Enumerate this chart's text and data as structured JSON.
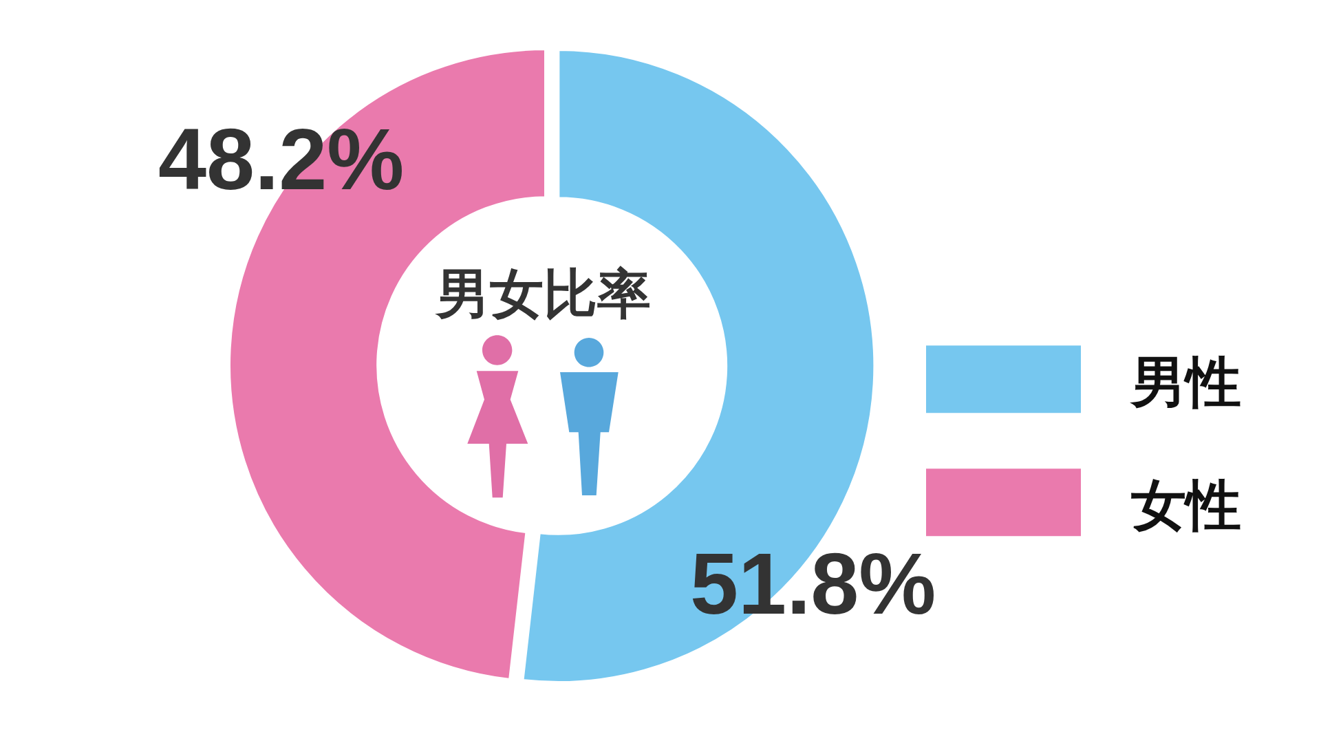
{
  "chart_data": {
    "type": "donut",
    "title": "男女比率",
    "categories": [
      "男性",
      "女性"
    ],
    "values": [
      51.8,
      48.2
    ],
    "colors": [
      "#76c7ef",
      "#ea7aad"
    ],
    "value_labels": [
      "51.8%",
      "48.2%"
    ],
    "legend": "right"
  }
}
